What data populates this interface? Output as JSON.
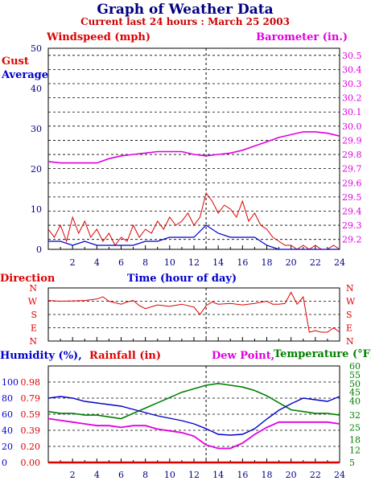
{
  "header": {
    "title": "Graph of Weather Data",
    "subtitle": "Current last 24 hours : March 25 2003"
  },
  "colors": {
    "wind": "#dd0000",
    "average": "#0000cc",
    "barometer": "#e000e0",
    "temperature": "#008000",
    "humidity": "#0000cc",
    "dew": "#e000e0",
    "rain": "#dd0000",
    "axis_text": "#000080"
  },
  "chart_data": [
    {
      "id": "wind",
      "type": "line",
      "labels": {
        "left": "Windspeed (mph)",
        "right": "Barometer (in.)",
        "gust": "Gust",
        "average": "Average",
        "xlabel": "Time (hour of day)"
      },
      "x_ticks": [
        2,
        4,
        6,
        8,
        10,
        12,
        14,
        16,
        18,
        20,
        22,
        24
      ],
      "xlim": [
        0,
        24
      ],
      "left_ticks": [
        0,
        10,
        20,
        30,
        40,
        50
      ],
      "left_lim": [
        0,
        50
      ],
      "right_ticks": [
        "29.2",
        "29.3",
        "29.4",
        "29.5",
        "29.6",
        "29.7",
        "29.8",
        "29.9",
        "30.0",
        "30.1",
        "30.2",
        "30.3",
        "30.4",
        "30.5"
      ],
      "right_lim": [
        29.13,
        30.55
      ],
      "grid": true,
      "series": [
        {
          "name": "Gust",
          "x": [
            0,
            0.5,
            1,
            1.5,
            2,
            2.5,
            3,
            3.5,
            4,
            4.5,
            5,
            5.5,
            6,
            6.5,
            7,
            7.5,
            8,
            8.5,
            9,
            9.5,
            10,
            10.5,
            11,
            11.5,
            12,
            12.5,
            13,
            13.5,
            14,
            14.5,
            15,
            15.5,
            16,
            16.5,
            17,
            17.5,
            18,
            18.5,
            19,
            19.5,
            20,
            20.5,
            21,
            21.5,
            22,
            22.5,
            23,
            23.5,
            24
          ],
          "y": [
            5,
            3,
            6,
            2,
            8,
            4,
            7,
            3,
            5,
            2,
            4,
            1,
            3,
            2,
            6,
            3,
            5,
            4,
            7,
            5,
            8,
            6,
            7,
            9,
            6,
            8,
            14,
            12,
            9,
            11,
            10,
            8,
            12,
            7,
            9,
            6,
            5,
            3,
            2,
            1,
            1,
            0,
            1,
            0,
            1,
            0,
            0,
            1,
            0
          ]
        },
        {
          "name": "Average",
          "x": [
            0,
            1,
            2,
            3,
            4,
            5,
            6,
            7,
            8,
            9,
            10,
            11,
            12,
            13,
            14,
            15,
            16,
            17,
            18,
            19,
            20,
            21,
            22,
            23,
            24
          ],
          "y": [
            2,
            2,
            1,
            2,
            1,
            1,
            1,
            1,
            2,
            2,
            3,
            3,
            3,
            6,
            4,
            3,
            3,
            3,
            1,
            0,
            0,
            0,
            0,
            0,
            0
          ]
        },
        {
          "name": "Barometer",
          "x": [
            0,
            1,
            2,
            3,
            4,
            5,
            6,
            7,
            8,
            9,
            10,
            11,
            12,
            13,
            14,
            15,
            16,
            17,
            18,
            19,
            20,
            21,
            22,
            23,
            24
          ],
          "y": [
            29.75,
            29.74,
            29.74,
            29.74,
            29.74,
            29.77,
            29.79,
            29.8,
            29.81,
            29.82,
            29.82,
            29.82,
            29.8,
            29.79,
            29.8,
            29.81,
            29.83,
            29.86,
            29.89,
            29.92,
            29.94,
            29.96,
            29.96,
            29.95,
            29.93
          ]
        }
      ]
    },
    {
      "id": "direction",
      "type": "line",
      "labels": {
        "title_left": "Direction",
        "xlabel": "Time (hour of day)"
      },
      "y_ticks": [
        "N",
        "W",
        "S",
        "E",
        "N"
      ],
      "xlim": [
        0,
        24
      ],
      "ylim": [
        0,
        360
      ],
      "grid": true,
      "series": [
        {
          "name": "Direction",
          "x": [
            0,
            1,
            2,
            3,
            4,
            4.5,
            5,
            6,
            6.5,
            7,
            7.5,
            8,
            9,
            10,
            11,
            12,
            12.5,
            13,
            13.5,
            14,
            15,
            16,
            17,
            18,
            18.5,
            19,
            19.5,
            20,
            20.5,
            21,
            21.5,
            22,
            22.5,
            23,
            23.5,
            24
          ],
          "y": [
            275,
            270,
            272,
            275,
            285,
            300,
            270,
            250,
            265,
            275,
            240,
            220,
            245,
            235,
            250,
            230,
            180,
            240,
            265,
            250,
            255,
            245,
            255,
            270,
            250,
            250,
            255,
            330,
            250,
            300,
            60,
            70,
            60,
            60,
            90,
            60
          ]
        }
      ]
    },
    {
      "id": "humidity",
      "type": "line",
      "labels": {
        "humidity": "Humidity (%),",
        "rainfall": "Rainfall (in)",
        "dew": "Dew Point,",
        "temperature": "Temperature (°F)"
      },
      "x_ticks": [
        2,
        4,
        6,
        8,
        10,
        12,
        14,
        16,
        18,
        20,
        22,
        24
      ],
      "xlim": [
        0,
        24
      ],
      "humidity_ticks": [
        0,
        20,
        40,
        60,
        80,
        100
      ],
      "humidity_lim": [
        0,
        120
      ],
      "rain_ticks": [
        "0.00",
        "0.20",
        "0.39",
        "0.59",
        "0.79",
        "0.98"
      ],
      "temp_ticks": [
        5,
        12,
        18,
        25,
        32,
        40,
        45,
        50,
        55,
        60
      ],
      "grid": true,
      "series": [
        {
          "name": "Humidity",
          "x": [
            0,
            1,
            2,
            3,
            4,
            5,
            6,
            7,
            8,
            9,
            10,
            11,
            12,
            13,
            14,
            15,
            16,
            17,
            18,
            19,
            20,
            21,
            22,
            23,
            24
          ],
          "y": [
            80,
            82,
            80,
            76,
            74,
            72,
            70,
            66,
            62,
            58,
            55,
            52,
            48,
            42,
            35,
            34,
            35,
            42,
            54,
            65,
            73,
            80,
            78,
            76,
            82
          ]
        },
        {
          "name": "Temperature",
          "x": [
            0,
            1,
            2,
            3,
            4,
            5,
            6,
            7,
            8,
            9,
            10,
            11,
            12,
            13,
            14,
            15,
            16,
            17,
            18,
            19,
            20,
            21,
            22,
            23,
            24
          ],
          "y": [
            34,
            33,
            33,
            32,
            32,
            31,
            30,
            33,
            36,
            39,
            42,
            45,
            47,
            49,
            50,
            49,
            48,
            46,
            43,
            39,
            35,
            34,
            33,
            33,
            32
          ]
        },
        {
          "name": "Dew Point",
          "x": [
            0,
            1,
            2,
            3,
            4,
            5,
            6,
            7,
            8,
            9,
            10,
            11,
            12,
            13,
            14,
            15,
            16,
            17,
            18,
            19,
            20,
            21,
            22,
            23,
            24
          ],
          "y": [
            30,
            29,
            28,
            27,
            26,
            26,
            25,
            26,
            26,
            24,
            23,
            22,
            20,
            15,
            13,
            13,
            16,
            21,
            25,
            28,
            28,
            28,
            28,
            28,
            27
          ]
        },
        {
          "name": "Rainfall",
          "x": [
            0,
            24
          ],
          "y": [
            0,
            0
          ]
        }
      ]
    }
  ]
}
